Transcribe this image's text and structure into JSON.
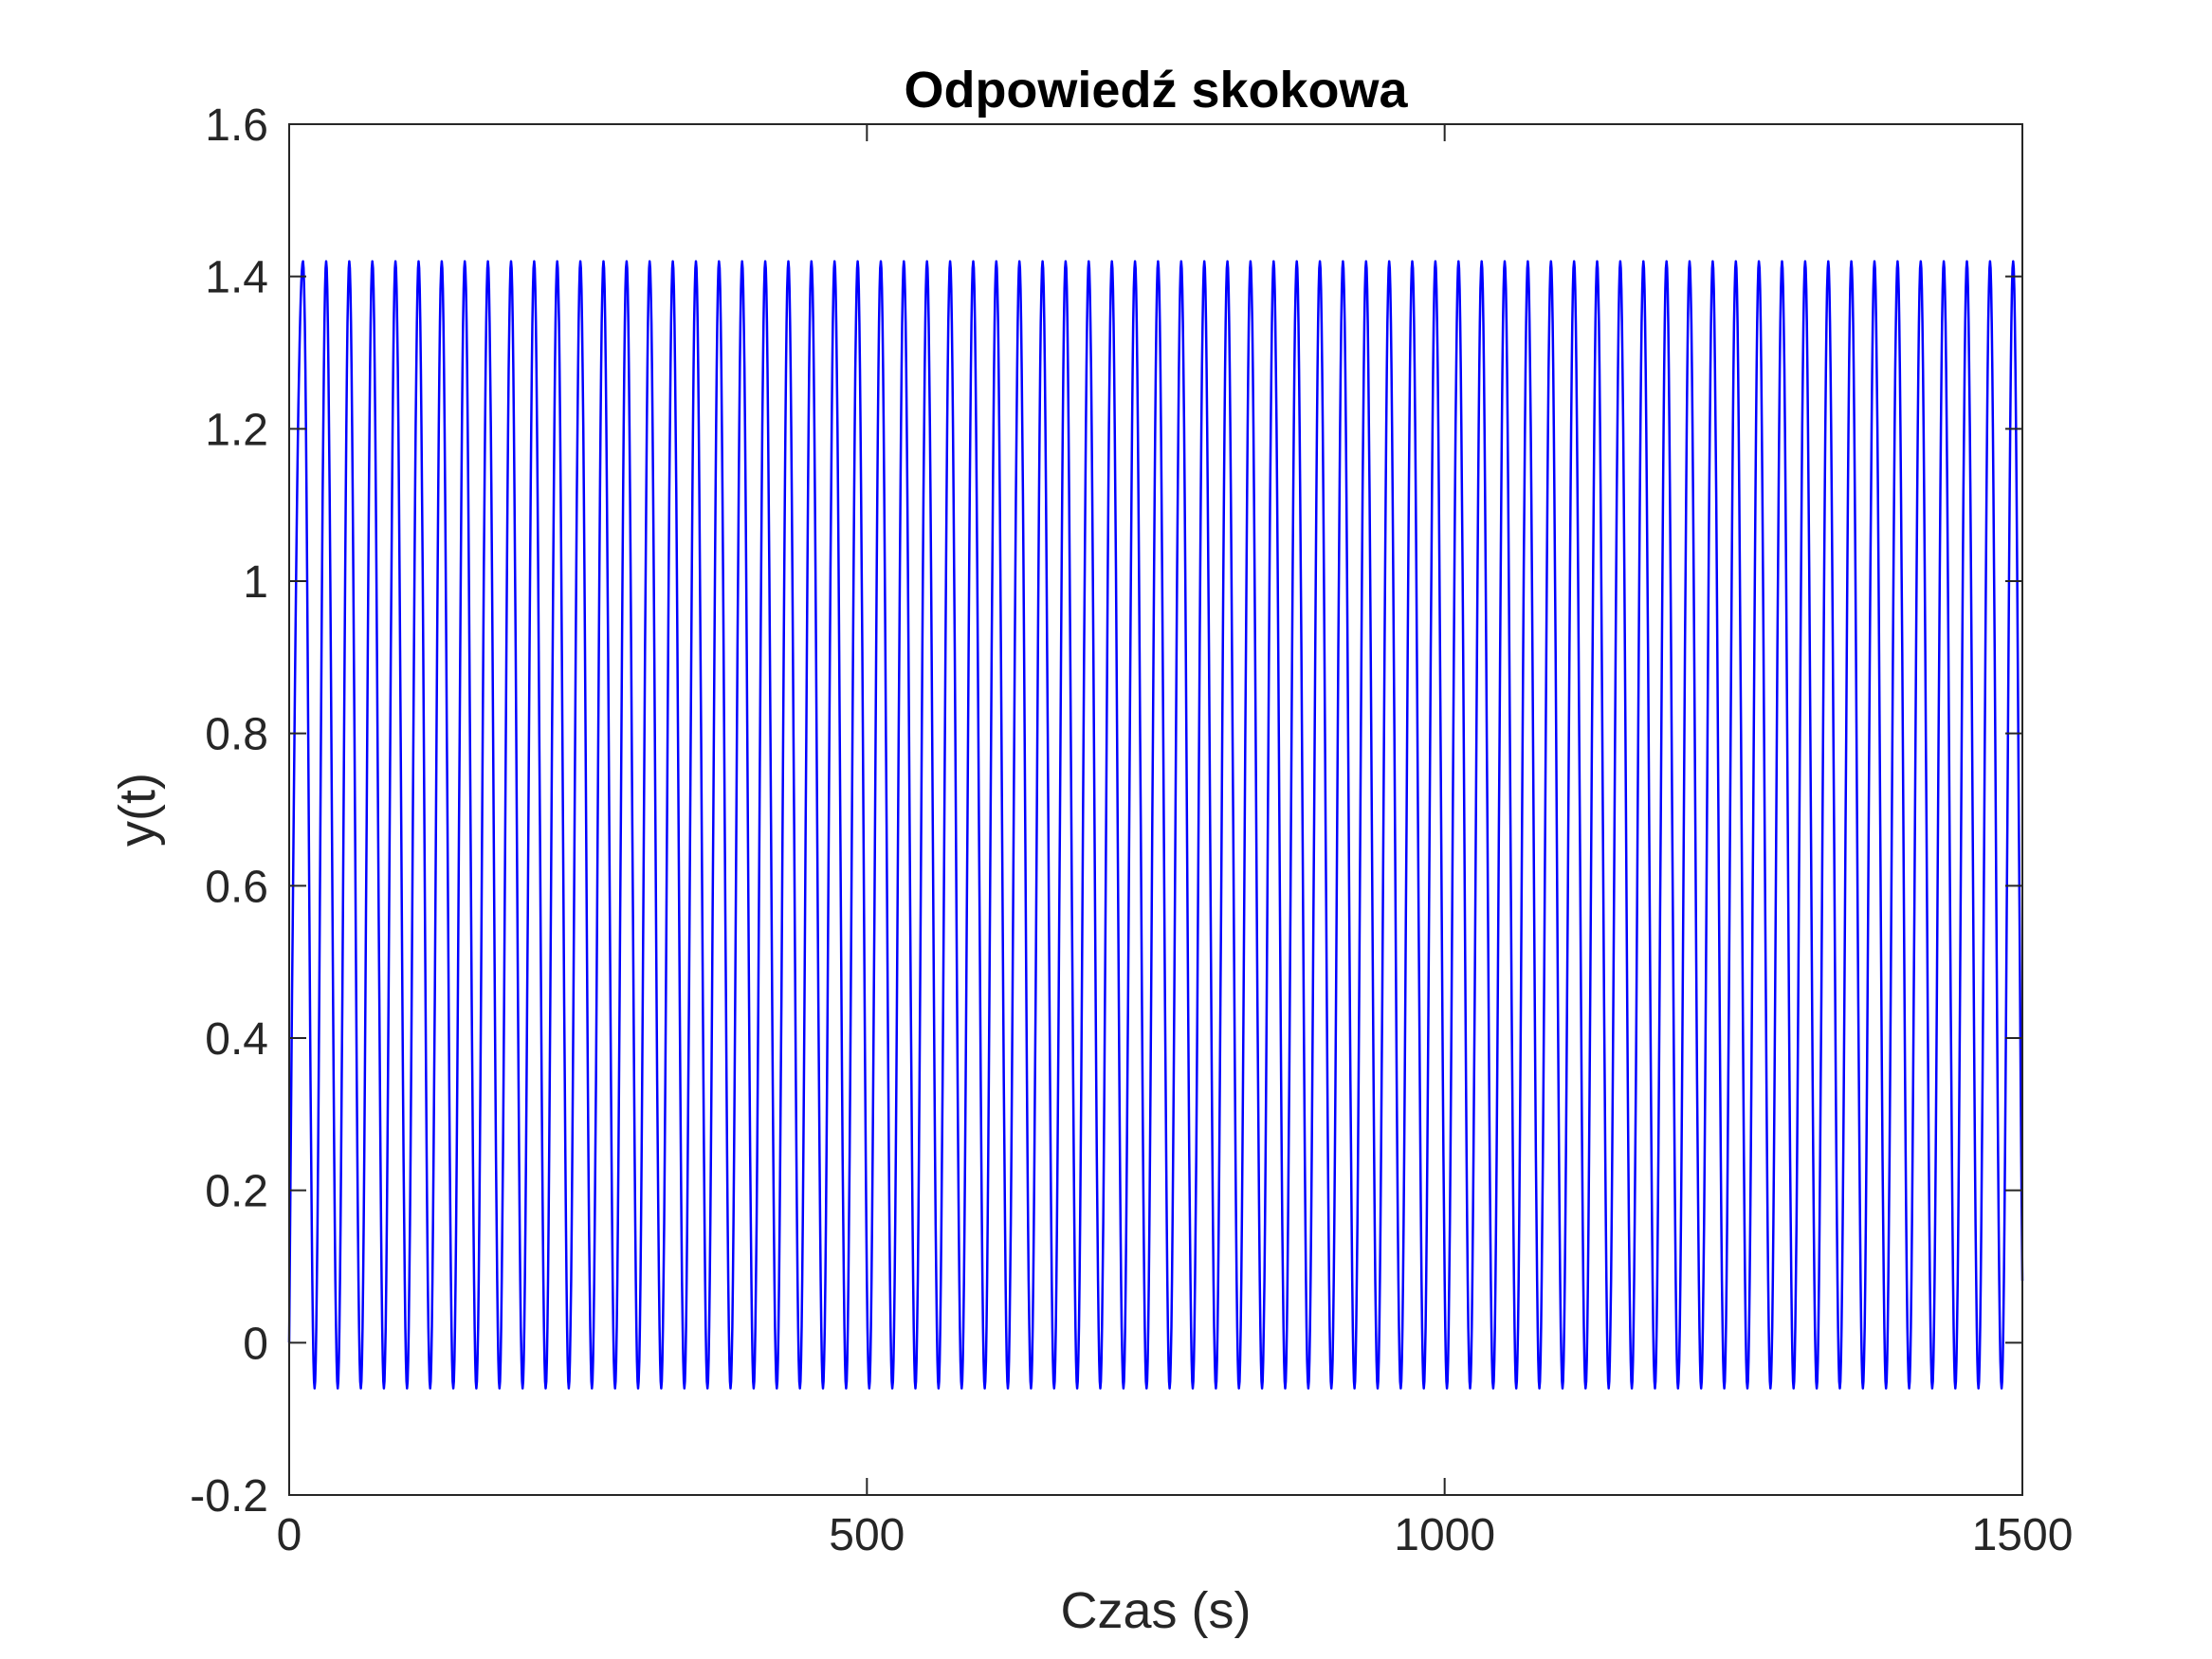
{
  "chart_data": {
    "type": "line",
    "title": "Odpowiedź skokowa",
    "xlabel": "Czas (s)",
    "ylabel": "y(t)",
    "xlim": [
      0,
      1500
    ],
    "ylim": [
      -0.2,
      1.6
    ],
    "xticks": [
      0,
      500,
      1000,
      1500
    ],
    "xtick_labels": [
      "0",
      "500",
      "1000",
      "1500"
    ],
    "yticks": [
      -0.2,
      0,
      0.2,
      0.4,
      0.6,
      0.8,
      1,
      1.2,
      1.4,
      1.6
    ],
    "ytick_labels": [
      "-0.2",
      "0",
      "0.2",
      "0.4",
      "0.6",
      "0.8",
      "1",
      "1.2",
      "1.4",
      "1.6"
    ],
    "grid": false,
    "series": [
      {
        "color": "#0000ff",
        "signal": {
          "form": "sustained oscillation",
          "start": {
            "t": 0,
            "y": 0
          },
          "period": 20,
          "first_peak_t": 12,
          "peak": 1.42,
          "trough": -0.06,
          "end_t": 1500
        }
      }
    ]
  }
}
